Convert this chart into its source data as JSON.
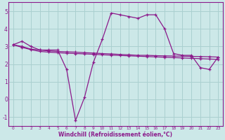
{
  "xlabel": "Windchill (Refroidissement éolien,°C)",
  "background_color": "#cce8e8",
  "line_color": "#8b1a8b",
  "grid_color": "#aad0d0",
  "hours": [
    0,
    1,
    2,
    3,
    4,
    5,
    6,
    7,
    8,
    9,
    10,
    11,
    12,
    13,
    14,
    15,
    16,
    17,
    18,
    19,
    20,
    21,
    22,
    23
  ],
  "series1": [
    3.1,
    3.3,
    3.0,
    2.8,
    2.8,
    2.8,
    1.7,
    -1.2,
    0.1,
    2.1,
    3.4,
    4.9,
    4.8,
    4.7,
    4.6,
    4.8,
    4.8,
    4.0,
    2.6,
    2.5,
    2.5,
    1.8,
    1.7,
    2.4
  ],
  "series2": [
    3.1,
    3.0,
    2.85,
    2.8,
    2.75,
    2.72,
    2.7,
    2.68,
    2.65,
    2.63,
    2.6,
    2.58,
    2.55,
    2.53,
    2.5,
    2.5,
    2.48,
    2.47,
    2.46,
    2.45,
    2.44,
    2.43,
    2.42,
    2.4
  ],
  "series3": [
    3.1,
    2.95,
    2.82,
    2.72,
    2.68,
    2.65,
    2.62,
    2.6,
    2.58,
    2.56,
    2.53,
    2.51,
    2.49,
    2.47,
    2.45,
    2.43,
    2.41,
    2.39,
    2.37,
    2.35,
    2.33,
    2.31,
    2.29,
    2.27
  ],
  "ylim": [
    -1.5,
    5.5
  ],
  "xlim": [
    -0.5,
    23.5
  ],
  "yticks": [
    -1,
    0,
    1,
    2,
    3,
    4,
    5
  ],
  "xticks": [
    0,
    1,
    2,
    3,
    4,
    5,
    6,
    7,
    8,
    9,
    10,
    11,
    12,
    13,
    14,
    15,
    16,
    17,
    18,
    19,
    20,
    21,
    22,
    23
  ]
}
